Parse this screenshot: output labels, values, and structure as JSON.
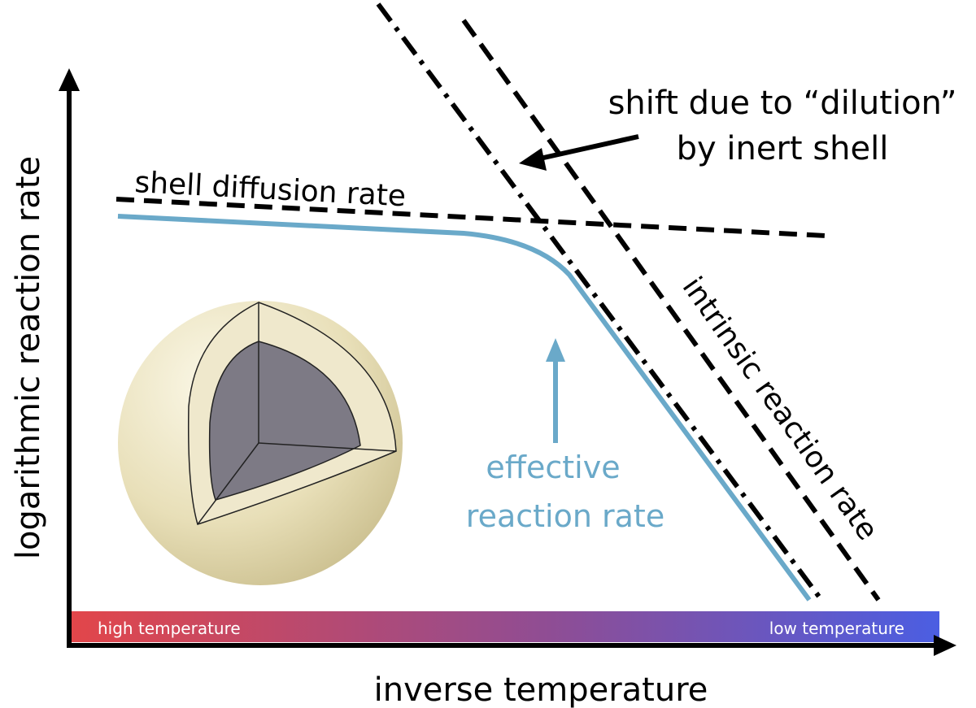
{
  "axes": {
    "x_label": "inverse temperature",
    "y_label": "logarithmic reaction rate"
  },
  "temperature_bar": {
    "left": "high temperature",
    "right": "low temperature"
  },
  "annotations": {
    "shell_diffusion": "shell diffusion rate",
    "intrinsic": "intrinsic reaction rate",
    "shift": [
      "shift due to “dilution”",
      "by inert shell"
    ],
    "effective": [
      "effective",
      "reaction rate"
    ]
  }
}
